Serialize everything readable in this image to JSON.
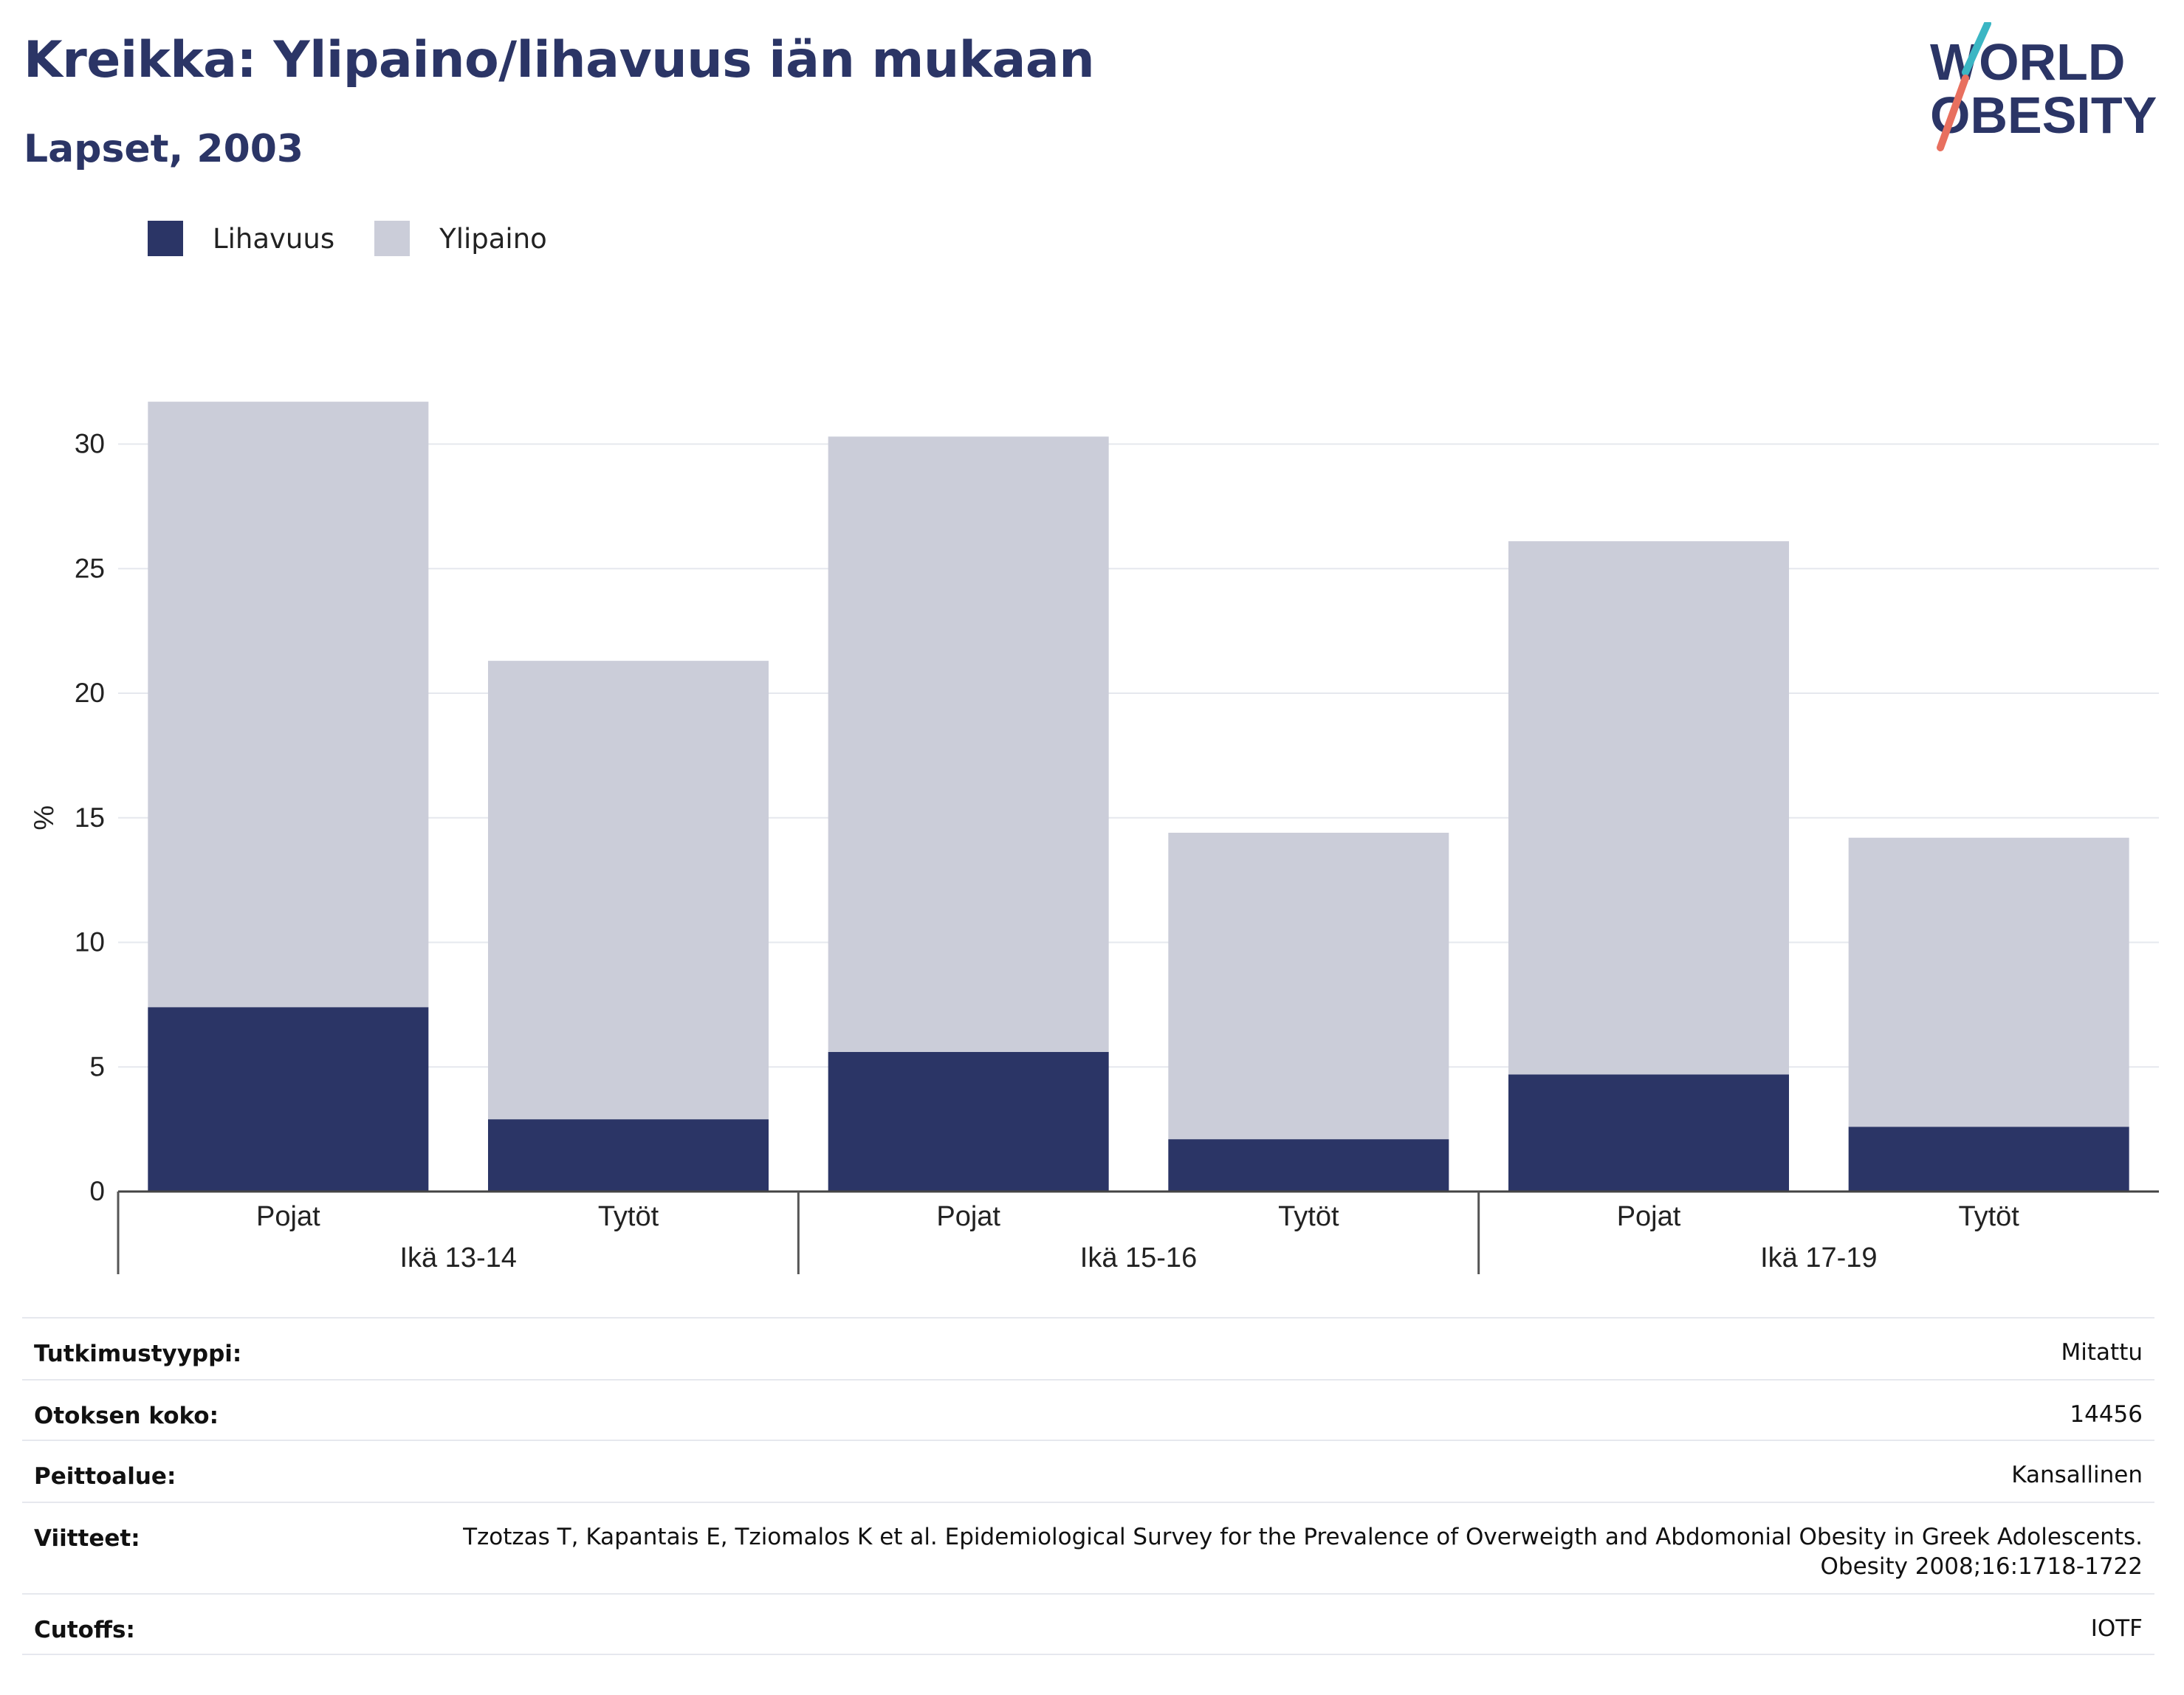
{
  "title": "Kreikka: Ylipaino/lihavuus iän mukaan",
  "subtitle": "Lapset, 2003",
  "logo": {
    "line1": "WORLD",
    "line2": "OBESITY"
  },
  "colors": {
    "obesity": "#2b3566",
    "overweight": "#cbcdd9",
    "title": "#2b3566",
    "grid": "#e6e8ee",
    "logo_teal": "#3bb6c4",
    "logo_coral": "#e8705f"
  },
  "legend": [
    {
      "label": "Lihavuus",
      "color": "#2b3566"
    },
    {
      "label": "Ylipaino",
      "color": "#cbcdd9"
    }
  ],
  "chart_data": {
    "type": "bar",
    "stacked": true,
    "ylabel": "%",
    "ylim": [
      0,
      32
    ],
    "yticks": [
      0,
      5,
      10,
      15,
      20,
      25,
      30
    ],
    "groups": [
      "Ikä 13-14",
      "Ikä 15-16",
      "Ikä 17-19"
    ],
    "categories": [
      "Pojat",
      "Tytöt",
      "Pojat",
      "Tytöt",
      "Pojat",
      "Tytöt"
    ],
    "series": [
      {
        "name": "Lihavuus",
        "values": [
          7.4,
          2.9,
          5.6,
          2.1,
          4.7,
          2.6
        ]
      },
      {
        "name": "Ylipaino",
        "values": [
          24.3,
          18.4,
          24.7,
          12.3,
          21.4,
          11.6
        ]
      }
    ],
    "grid": true
  },
  "info": [
    {
      "key": "Tutkimustyyppi:",
      "value": "Mitattu"
    },
    {
      "key": "Otoksen koko:",
      "value": "14456"
    },
    {
      "key": "Peittoalue:",
      "value": "Kansallinen"
    },
    {
      "key": "Viitteet:",
      "value": "Tzotzas T, Kapantais E, Tziomalos K et al. Epidemiological Survey for the Prevalence of Overweigth and Abdomonial Obesity in Greek Adolescents. Obesity 2008;16:1718-1722"
    },
    {
      "key": "Cutoffs:",
      "value": "IOTF"
    }
  ]
}
